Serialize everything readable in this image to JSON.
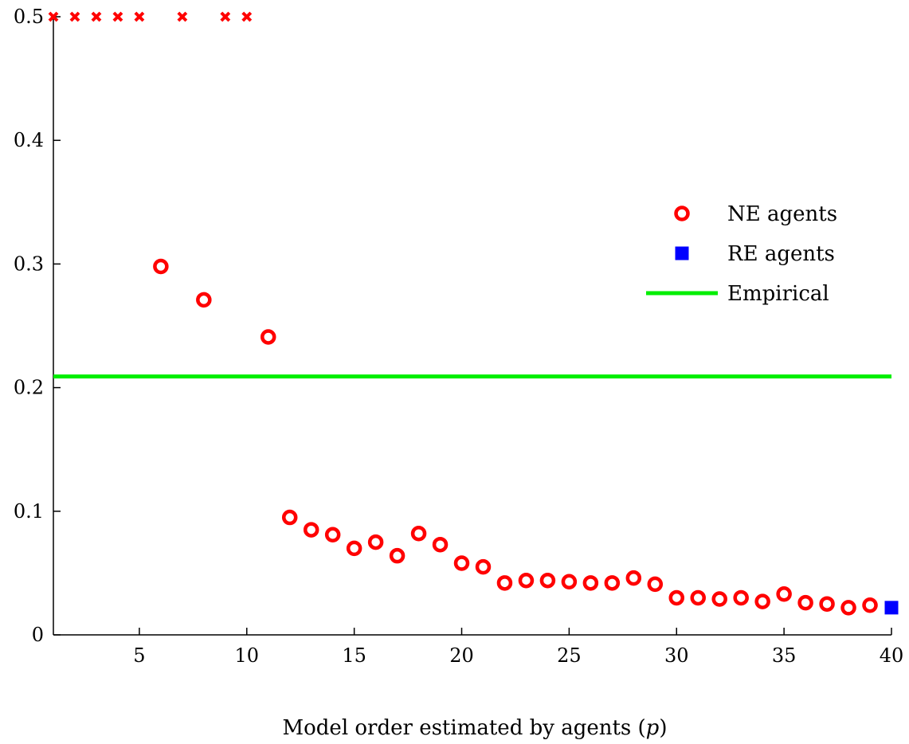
{
  "chart_data": {
    "type": "scatter",
    "xlabel_prefix": "Model order estimated by agents (",
    "xlabel_var": "p",
    "xlabel_suffix": ")",
    "ylabel": "",
    "xlim": [
      1,
      40
    ],
    "ylim": [
      0,
      0.5
    ],
    "xticks": [
      5,
      10,
      15,
      20,
      25,
      30,
      35,
      40
    ],
    "yticks": [
      0,
      0.1,
      0.2,
      0.3,
      0.4,
      0.5
    ],
    "ytick_labels": [
      "0",
      "0.1",
      "0.2",
      "0.3",
      "0.4",
      "0.5"
    ],
    "legend_position": "right",
    "series": [
      {
        "name": "",
        "marker": "x",
        "color": "#ff0000",
        "points": [
          [
            1,
            0.5
          ],
          [
            2,
            0.5
          ],
          [
            3,
            0.5
          ],
          [
            4,
            0.5
          ],
          [
            5,
            0.5
          ],
          [
            7,
            0.5
          ],
          [
            9,
            0.5
          ],
          [
            10,
            0.5
          ]
        ]
      },
      {
        "name": "NE agents",
        "marker": "circle-open",
        "color": "#ff0000",
        "points": [
          [
            6,
            0.298
          ],
          [
            8,
            0.271
          ],
          [
            11,
            0.241
          ],
          [
            12,
            0.095
          ],
          [
            13,
            0.085
          ],
          [
            14,
            0.081
          ],
          [
            15,
            0.07
          ],
          [
            16,
            0.075
          ],
          [
            17,
            0.064
          ],
          [
            18,
            0.082
          ],
          [
            19,
            0.073
          ],
          [
            20,
            0.058
          ],
          [
            21,
            0.055
          ],
          [
            22,
            0.042
          ],
          [
            23,
            0.044
          ],
          [
            24,
            0.044
          ],
          [
            25,
            0.043
          ],
          [
            26,
            0.042
          ],
          [
            27,
            0.042
          ],
          [
            28,
            0.046
          ],
          [
            29,
            0.041
          ],
          [
            30,
            0.03
          ],
          [
            31,
            0.03
          ],
          [
            32,
            0.029
          ],
          [
            33,
            0.03
          ],
          [
            34,
            0.027
          ],
          [
            35,
            0.033
          ],
          [
            36,
            0.026
          ],
          [
            37,
            0.025
          ],
          [
            38,
            0.022
          ],
          [
            39,
            0.024
          ]
        ]
      },
      {
        "name": "RE agents",
        "marker": "square",
        "color": "#0000ff",
        "points": [
          [
            40,
            0.022
          ]
        ]
      },
      {
        "name": "Empirical",
        "marker": "line",
        "color": "#00ee00",
        "y": 0.209
      }
    ]
  }
}
